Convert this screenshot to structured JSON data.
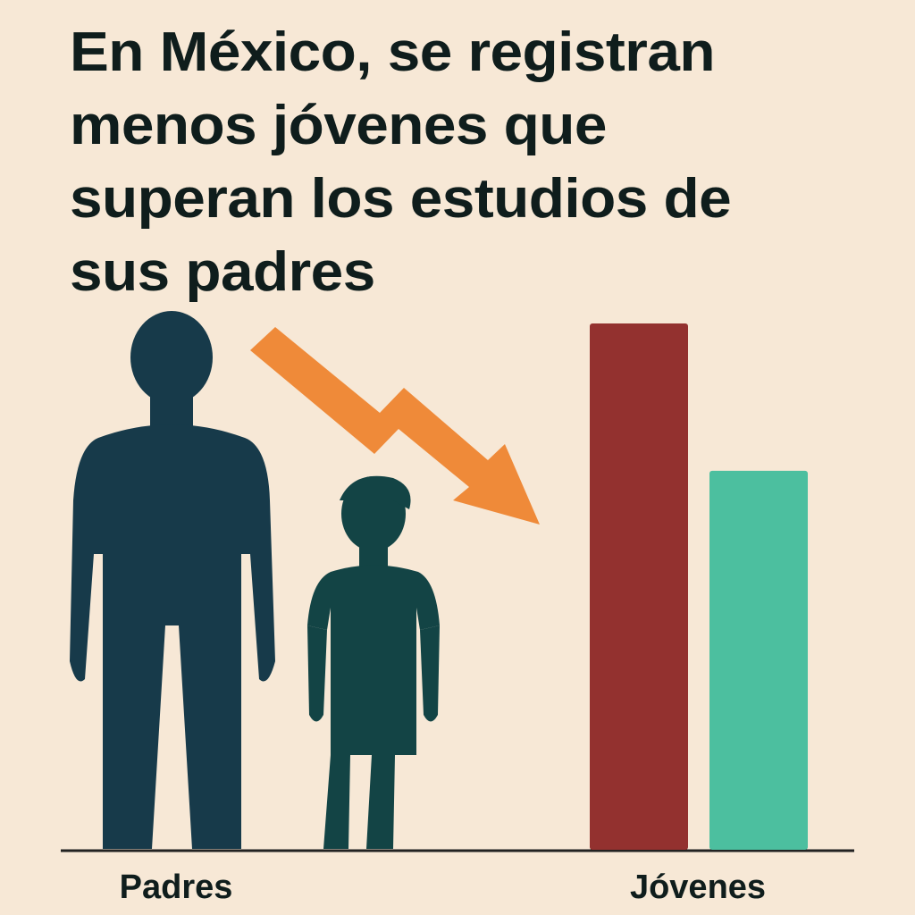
{
  "chart_data": {
    "type": "bar",
    "title": "En México, se registran menos jóvenes que superan los estudios de sus padres",
    "categories": [
      null,
      null
    ],
    "values": [
      100,
      72
    ],
    "colors": [
      "#93312f",
      "#4cbf9f"
    ],
    "ylim": [
      0,
      100
    ],
    "labels": [
      "Padres",
      "Jóvenes"
    ]
  }
}
